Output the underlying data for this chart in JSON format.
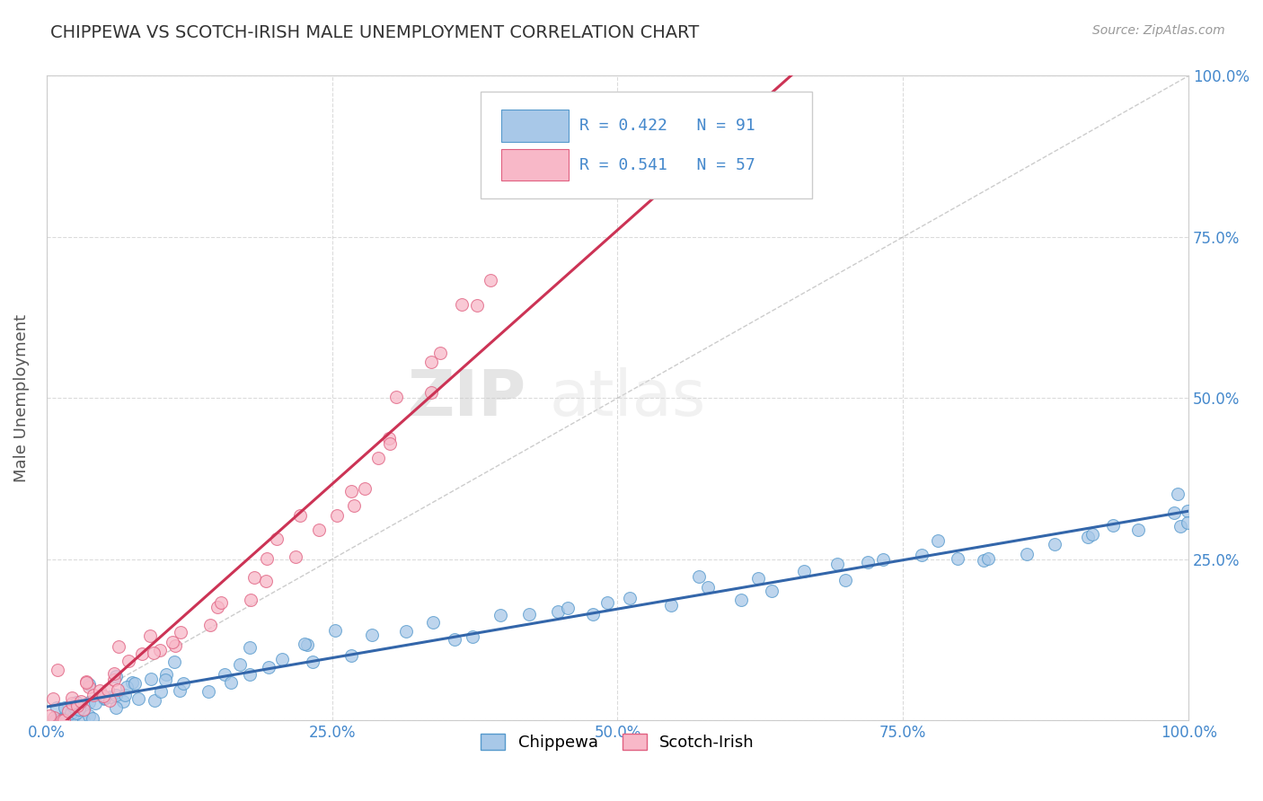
{
  "title": "CHIPPEWA VS SCOTCH-IRISH MALE UNEMPLOYMENT CORRELATION CHART",
  "source": "Source: ZipAtlas.com",
  "xlabel": "",
  "ylabel": "Male Unemployment",
  "xlim": [
    0,
    1
  ],
  "ylim": [
    0,
    1
  ],
  "xticks": [
    0,
    0.25,
    0.5,
    0.75,
    1.0
  ],
  "yticks": [
    0,
    0.25,
    0.5,
    0.75,
    1.0
  ],
  "xticklabels": [
    "0.0%",
    "25.0%",
    "50.0%",
    "75.0%",
    "100.0%"
  ],
  "yticklabels": [
    "",
    "25.0%",
    "50.0%",
    "75.0%",
    "100.0%"
  ],
  "chippewa_color": "#a8c8e8",
  "chippewa_edge": "#5599cc",
  "scotch_color": "#f8b8c8",
  "scotch_edge": "#e06080",
  "trend_blue": "#3366aa",
  "trend_pink": "#cc3355",
  "legend_r1": "R = 0.422",
  "legend_n1": "N = 91",
  "legend_r2": "R = 0.541",
  "legend_n2": "N = 57",
  "label1": "Chippewa",
  "label2": "Scotch-Irish",
  "title_color": "#333333",
  "axis_color": "#4488cc",
  "watermark_zip": "ZIP",
  "watermark_atlas": "atlas",
  "grid_color": "#cccccc",
  "bg_color": "#ffffff",
  "chippewa_x": [
    0.005,
    0.008,
    0.01,
    0.012,
    0.015,
    0.018,
    0.02,
    0.022,
    0.025,
    0.028,
    0.03,
    0.032,
    0.035,
    0.038,
    0.04,
    0.042,
    0.045,
    0.048,
    0.05,
    0.052,
    0.055,
    0.058,
    0.06,
    0.062,
    0.065,
    0.068,
    0.07,
    0.072,
    0.075,
    0.08,
    0.085,
    0.09,
    0.095,
    0.1,
    0.105,
    0.11,
    0.115,
    0.12,
    0.13,
    0.14,
    0.15,
    0.16,
    0.17,
    0.18,
    0.19,
    0.2,
    0.21,
    0.22,
    0.23,
    0.24,
    0.25,
    0.27,
    0.29,
    0.31,
    0.33,
    0.35,
    0.38,
    0.4,
    0.42,
    0.44,
    0.46,
    0.48,
    0.5,
    0.52,
    0.54,
    0.56,
    0.58,
    0.6,
    0.62,
    0.64,
    0.66,
    0.68,
    0.7,
    0.72,
    0.74,
    0.76,
    0.78,
    0.8,
    0.82,
    0.84,
    0.86,
    0.88,
    0.9,
    0.92,
    0.94,
    0.96,
    0.98,
    0.99,
    0.995,
    0.998,
    0.999
  ],
  "chippewa_y": [
    0.005,
    0.01,
    0.008,
    0.012,
    0.01,
    0.015,
    0.012,
    0.018,
    0.015,
    0.02,
    0.018,
    0.022,
    0.02,
    0.025,
    0.022,
    0.028,
    0.025,
    0.03,
    0.028,
    0.032,
    0.03,
    0.035,
    0.032,
    0.038,
    0.035,
    0.04,
    0.038,
    0.042,
    0.04,
    0.045,
    0.048,
    0.05,
    0.052,
    0.055,
    0.058,
    0.06,
    0.055,
    0.062,
    0.065,
    0.068,
    0.07,
    0.075,
    0.08,
    0.085,
    0.09,
    0.095,
    0.1,
    0.105,
    0.11,
    0.115,
    0.12,
    0.125,
    0.13,
    0.135,
    0.14,
    0.145,
    0.15,
    0.155,
    0.16,
    0.165,
    0.17,
    0.175,
    0.18,
    0.185,
    0.19,
    0.195,
    0.2,
    0.205,
    0.21,
    0.215,
    0.22,
    0.225,
    0.23,
    0.235,
    0.24,
    0.245,
    0.25,
    0.255,
    0.26,
    0.265,
    0.27,
    0.275,
    0.28,
    0.285,
    0.29,
    0.295,
    0.3,
    0.305,
    0.31,
    0.315,
    0.32
  ],
  "scotch_x": [
    0.005,
    0.008,
    0.01,
    0.012,
    0.015,
    0.018,
    0.02,
    0.022,
    0.025,
    0.028,
    0.03,
    0.032,
    0.035,
    0.038,
    0.04,
    0.042,
    0.045,
    0.048,
    0.05,
    0.055,
    0.06,
    0.065,
    0.07,
    0.075,
    0.08,
    0.085,
    0.09,
    0.095,
    0.1,
    0.11,
    0.12,
    0.13,
    0.14,
    0.15,
    0.16,
    0.17,
    0.18,
    0.19,
    0.2,
    0.21,
    0.22,
    0.23,
    0.24,
    0.25,
    0.26,
    0.27,
    0.28,
    0.29,
    0.3,
    0.31,
    0.32,
    0.33,
    0.34,
    0.35,
    0.36,
    0.37,
    0.38
  ],
  "scotch_y": [
    0.008,
    0.012,
    0.01,
    0.015,
    0.012,
    0.018,
    0.015,
    0.02,
    0.018,
    0.025,
    0.022,
    0.028,
    0.025,
    0.032,
    0.03,
    0.038,
    0.035,
    0.042,
    0.04,
    0.05,
    0.06,
    0.07,
    0.065,
    0.08,
    0.085,
    0.09,
    0.1,
    0.11,
    0.12,
    0.13,
    0.14,
    0.155,
    0.165,
    0.175,
    0.185,
    0.195,
    0.21,
    0.22,
    0.23,
    0.25,
    0.265,
    0.28,
    0.3,
    0.32,
    0.34,
    0.365,
    0.385,
    0.41,
    0.44,
    0.465,
    0.49,
    0.52,
    0.55,
    0.58,
    0.62,
    0.66,
    0.7
  ]
}
